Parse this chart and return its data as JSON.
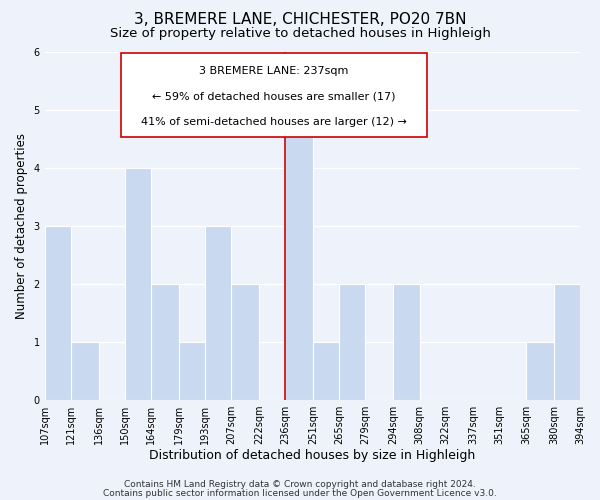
{
  "title": "3, BREMERE LANE, CHICHESTER, PO20 7BN",
  "subtitle": "Size of property relative to detached houses in Highleigh",
  "xlabel": "Distribution of detached houses by size in Highleigh",
  "ylabel": "Number of detached properties",
  "bar_left_edges": [
    107,
    121,
    136,
    150,
    164,
    179,
    193,
    207,
    222,
    236,
    251,
    265,
    279,
    294,
    308,
    322,
    337,
    351,
    365,
    380
  ],
  "bar_widths": [
    14,
    15,
    14,
    14,
    15,
    14,
    14,
    15,
    14,
    15,
    14,
    14,
    15,
    14,
    14,
    15,
    14,
    14,
    15,
    14
  ],
  "bar_heights": [
    3,
    1,
    0,
    4,
    2,
    1,
    3,
    2,
    0,
    5,
    1,
    2,
    0,
    2,
    0,
    0,
    0,
    0,
    1,
    2
  ],
  "bar_color": "#c9d9f0",
  "bar_edge_color": "#ffffff",
  "reference_line_x": 236,
  "reference_line_color": "#cc0000",
  "ylim": [
    0,
    6
  ],
  "yticks": [
    0,
    1,
    2,
    3,
    4,
    5,
    6
  ],
  "x_tick_labels": [
    "107sqm",
    "121sqm",
    "136sqm",
    "150sqm",
    "164sqm",
    "179sqm",
    "193sqm",
    "207sqm",
    "222sqm",
    "236sqm",
    "251sqm",
    "265sqm",
    "279sqm",
    "294sqm",
    "308sqm",
    "322sqm",
    "337sqm",
    "351sqm",
    "365sqm",
    "380sqm",
    "394sqm"
  ],
  "annotation_title": "3 BREMERE LANE: 237sqm",
  "annotation_line1": "← 59% of detached houses are smaller (17)",
  "annotation_line2": "41% of semi-detached houses are larger (12) →",
  "annotation_box_color": "#ffffff",
  "annotation_box_edge_color": "#cc0000",
  "footnote1": "Contains HM Land Registry data © Crown copyright and database right 2024.",
  "footnote2": "Contains public sector information licensed under the Open Government Licence v3.0.",
  "background_color": "#eef2fa",
  "plot_bg_color": "#eef2fa",
  "grid_color": "#ffffff",
  "title_fontsize": 11,
  "subtitle_fontsize": 9.5,
  "xlabel_fontsize": 9,
  "ylabel_fontsize": 8.5,
  "tick_fontsize": 7,
  "annotation_fontsize": 8,
  "footnote_fontsize": 6.5
}
